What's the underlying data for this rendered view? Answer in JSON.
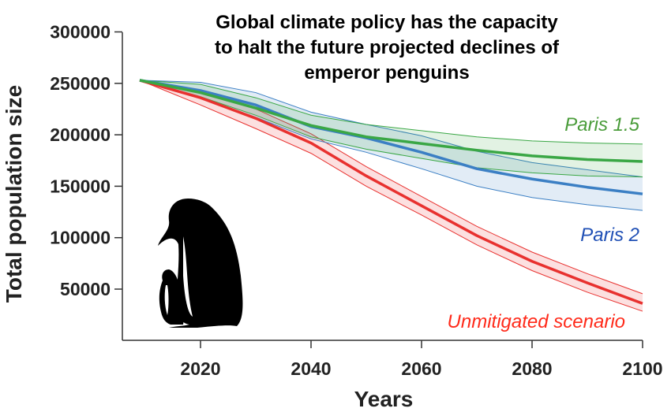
{
  "chart_data": {
    "type": "line",
    "title": [
      "Global climate policy has the capacity",
      "to halt the future projected declines of",
      "emperor penguins"
    ],
    "xlabel": "Years",
    "ylabel": "Total population size",
    "xlim": [
      2006,
      2100
    ],
    "ylim": [
      0,
      300000
    ],
    "xticks": [
      2020,
      2040,
      2060,
      2080,
      2100
    ],
    "yticks": [
      50000,
      100000,
      150000,
      200000,
      250000,
      300000
    ],
    "grid": false,
    "x": [
      2009,
      2020,
      2030,
      2040,
      2050,
      2060,
      2070,
      2080,
      2090,
      2100
    ],
    "series": [
      {
        "name": "Unmitigated scenario",
        "color": "#e8312f",
        "label_color": "#ff2a1a",
        "values": [
          253000,
          236000,
          216000,
          192000,
          160000,
          131000,
          102000,
          77000,
          56000,
          36000
        ],
        "lower": [
          253000,
          229000,
          206000,
          182000,
          150000,
          122000,
          93000,
          68000,
          47000,
          28500
        ],
        "upper": [
          253000,
          242000,
          225000,
          201000,
          169000,
          140000,
          111000,
          86000,
          65000,
          45500
        ]
      },
      {
        "name": "Paris 2",
        "color": "#3b7fc4",
        "label_color": "#1f4fb5",
        "values": [
          253000,
          243000,
          229000,
          208000,
          197000,
          183000,
          167000,
          157000,
          149000,
          142500
        ],
        "lower": [
          253000,
          236000,
          217000,
          196000,
          183000,
          167000,
          150000,
          139000,
          132000,
          126500
        ],
        "upper": [
          253000,
          251000,
          241000,
          222000,
          210000,
          199000,
          184000,
          173000,
          166000,
          159000
        ]
      },
      {
        "name": "Paris 1.5",
        "color": "#3aa745",
        "label_color": "#4a9c3a",
        "values": [
          253000,
          241000,
          226000,
          209000,
          198000,
          191500,
          185000,
          179500,
          176000,
          174000
        ],
        "lower": [
          253000,
          237000,
          219000,
          198000,
          186000,
          177000,
          168000,
          163000,
          160000,
          159000
        ],
        "upper": [
          253000,
          249000,
          236000,
          219000,
          210000,
          204000,
          198000,
          194000,
          192000,
          191000
        ]
      }
    ],
    "illustration": "emperor-penguin-with-chick silhouette"
  }
}
